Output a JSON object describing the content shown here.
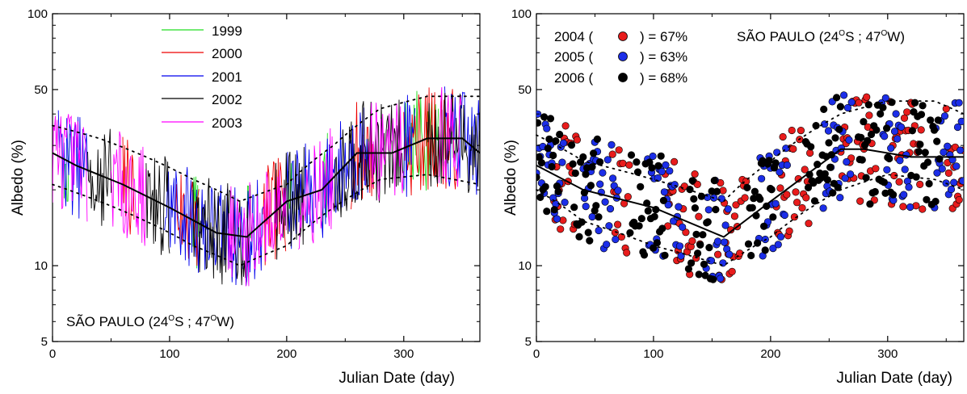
{
  "chart_data": [
    {
      "type": "line",
      "title": "",
      "annotation": "SÃO PAULO (24°S ; 47°W)",
      "annotation_parts": {
        "pre": "SÃO PAULO (24",
        "deg1": "O",
        "mid": "S ; 47",
        "deg2": "O",
        "post": "W)"
      },
      "xlabel": "Julian Date (day)",
      "ylabel": "Albedo (%)",
      "xlim": [
        0,
        365
      ],
      "ylim": [
        5,
        100
      ],
      "yscale": "log",
      "xticks": [
        0,
        100,
        200,
        300
      ],
      "yticks": [
        5,
        10,
        50,
        100
      ],
      "grid": false,
      "legend_position": "top-center",
      "series": [
        {
          "name": "1999",
          "color": "#22dd22"
        },
        {
          "name": "2000",
          "color": "#ee0000"
        },
        {
          "name": "2001",
          "color": "#0000ee"
        },
        {
          "name": "2002",
          "color": "#000000"
        },
        {
          "name": "2003",
          "color": "#ff00ff"
        }
      ],
      "mean_curve": {
        "x": [
          0,
          20,
          60,
          100,
          140,
          166,
          200,
          230,
          260,
          290,
          320,
          350,
          365
        ],
        "y": [
          28,
          25,
          21,
          17,
          13.5,
          13,
          18,
          20,
          28,
          28,
          32,
          32,
          28
        ]
      },
      "upper_envelope": {
        "x": [
          0,
          40,
          80,
          120,
          160,
          200,
          240,
          280,
          320,
          365
        ],
        "y": [
          36,
          32,
          27,
          22,
          18,
          21,
          30,
          42,
          47,
          47
        ]
      },
      "lower_envelope": {
        "x": [
          0,
          40,
          80,
          120,
          160,
          200,
          240,
          280,
          320,
          365
        ],
        "y": [
          21,
          18,
          15,
          12,
          10,
          12,
          17,
          22,
          23,
          21
        ]
      }
    },
    {
      "type": "scatter",
      "title": "",
      "annotation": "SÃO PAULO (24°S ; 47°W)",
      "annotation_parts": {
        "pre": "SÃO PAULO (24",
        "deg1": "O",
        "mid": "S ; 47",
        "deg2": "O",
        "post": "W)"
      },
      "xlabel": "Julian Date (day)",
      "ylabel": "Albedo (%)",
      "xlim": [
        0,
        365
      ],
      "ylim": [
        5,
        100
      ],
      "yscale": "log",
      "xticks": [
        0,
        100,
        200,
        300
      ],
      "yticks": [
        5,
        10,
        50,
        100
      ],
      "grid": false,
      "legend_position": "top-left",
      "series": [
        {
          "name": "2004",
          "pre": "2004 (",
          "post": ") = 67%",
          "color": "#e81c1c"
        },
        {
          "name": "2005",
          "pre": "2005 (",
          "post": ") = 63%",
          "color": "#1c2ee8"
        },
        {
          "name": "2006",
          "pre": "2006 (",
          "post": ") = 68%",
          "color": "#000000"
        }
      ],
      "mean_curve": {
        "x": [
          0,
          40,
          100,
          160,
          200,
          260,
          280,
          320,
          365
        ],
        "y": [
          25,
          20,
          17,
          13,
          18,
          29,
          29,
          27,
          27
        ]
      },
      "upper_envelope": {
        "x": [
          0,
          40,
          100,
          160,
          200,
          260,
          300,
          340,
          365
        ],
        "y": [
          33,
          26,
          22,
          18,
          26,
          40,
          45,
          45,
          40
        ]
      },
      "lower_envelope": {
        "x": [
          0,
          40,
          100,
          160,
          200,
          260,
          300,
          340,
          365
        ],
        "y": [
          20,
          15,
          12,
          10,
          13,
          20,
          23,
          22,
          20
        ]
      }
    }
  ]
}
